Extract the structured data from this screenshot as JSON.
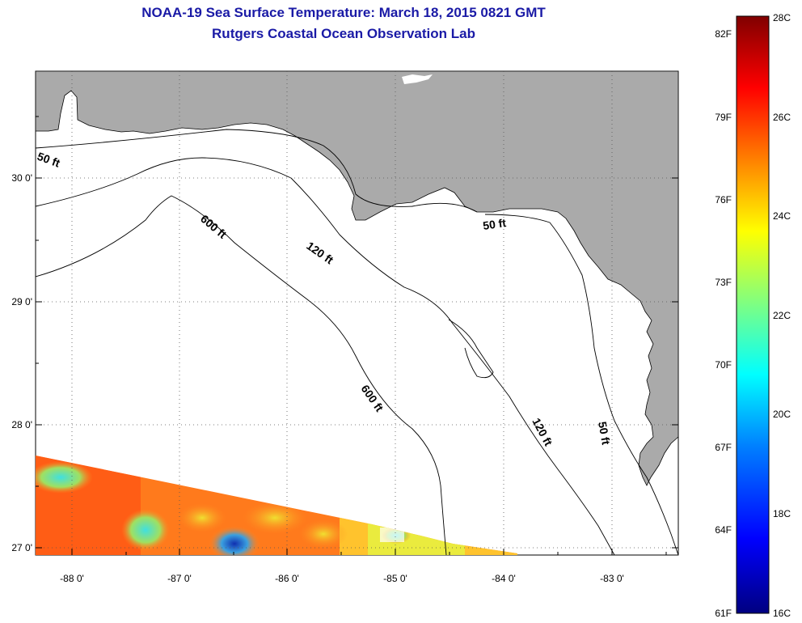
{
  "title": {
    "line1": "NOAA-19 Sea Surface Temperature:  March 18, 2015 0821 GMT",
    "line2": "Rutgers Coastal Ocean Observation Lab"
  },
  "axes": {
    "lon_ticks": [
      "-88 0'",
      "-87 0'",
      "-86 0'",
      "-85 0'",
      "-84 0'",
      "-83 0'"
    ],
    "lat_ticks": [
      "30 0'",
      "29 0'",
      "28 0'",
      "27 0'"
    ]
  },
  "contours": {
    "labels": [
      "50 ft",
      "600 ft",
      "120 ft",
      "50 ft",
      "600 ft",
      "120 ft",
      "50 ft"
    ]
  },
  "colorbar": {
    "fahrenheit_labels": [
      "82F",
      "79F",
      "76F",
      "73F",
      "70F",
      "67F",
      "64F",
      "61F"
    ],
    "celsius_labels": [
      "28C",
      "26C",
      "24C",
      "22C",
      "20C",
      "18C",
      "16C"
    ],
    "stops": [
      "#000080",
      "#0000ff",
      "#0080ff",
      "#00ffff",
      "#80ff80",
      "#ffff00",
      "#ff8000",
      "#ff0000",
      "#800000"
    ]
  },
  "colors": {
    "land": "#aaaaaa",
    "water": "#ffffff",
    "title": "#1a1aa6"
  }
}
